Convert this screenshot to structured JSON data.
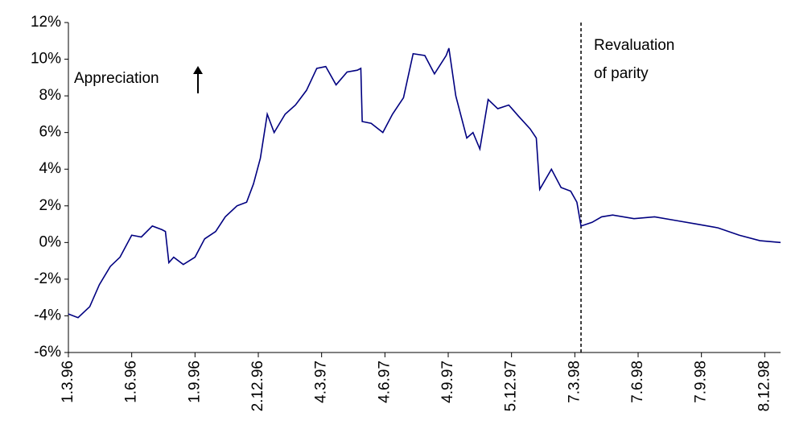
{
  "chart_data": {
    "type": "line",
    "x": [
      "1.3.96",
      "15.3.96",
      "1.4.96",
      "15.4.96",
      "1.5.96",
      "15.5.96",
      "1.6.96",
      "15.6.96",
      "1.7.96",
      "15.7.96",
      "20.7.96",
      "25.7.96",
      "1.8.96",
      "15.8.96",
      "1.9.96",
      "15.9.96",
      "1.10.96",
      "15.10.96",
      "1.11.96",
      "15.11.96",
      "25.11.96",
      "5.12.96",
      "15.12.96",
      "25.12.96",
      "10.1.97",
      "25.1.97",
      "10.2.97",
      "25.2.97",
      "10.3.97",
      "25.3.97",
      "10.4.97",
      "25.4.97",
      "30.4.97",
      "2.5.97",
      "15.5.97",
      "1.6.97",
      "15.6.97",
      "1.7.97",
      "15.7.97",
      "1.8.97",
      "15.8.97",
      "1.9.97",
      "5.9.97",
      "15.9.97",
      "1.10.97",
      "10.10.97",
      "20.10.97",
      "1.11.97",
      "15.11.97",
      "1.12.97",
      "15.12.97",
      "1.1.98",
      "10.1.98",
      "15.1.98",
      "1.2.98",
      "15.2.98",
      "1.3.98",
      "10.3.98",
      "16.3.98",
      "1.4.98",
      "15.4.98",
      "1.5.98",
      "1.6.98",
      "1.7.98",
      "1.8.98",
      "1.9.98",
      "1.10.98",
      "1.11.98",
      "1.12.98",
      "31.12.98"
    ],
    "series": [
      {
        "color": "#000080",
        "values": [
          -3.9,
          -4.1,
          -3.5,
          -2.3,
          -1.3,
          -0.8,
          0.4,
          0.3,
          0.9,
          0.7,
          0.6,
          -1.1,
          -0.8,
          -1.2,
          -0.8,
          0.2,
          0.6,
          1.4,
          2.0,
          2.2,
          3.2,
          4.6,
          7.0,
          6.0,
          7.0,
          7.5,
          8.3,
          9.5,
          9.6,
          8.6,
          9.3,
          9.4,
          9.5,
          6.6,
          6.5,
          6.0,
          7.0,
          7.9,
          10.3,
          10.2,
          9.2,
          10.2,
          10.6,
          8.0,
          5.7,
          6.0,
          5.1,
          7.8,
          7.3,
          7.5,
          6.9,
          6.2,
          5.7,
          2.9,
          4.0,
          3.0,
          2.8,
          2.2,
          0.9,
          1.1,
          1.4,
          1.5,
          1.3,
          1.4,
          1.2,
          1.0,
          0.8,
          0.4,
          0.1,
          0.0
        ]
      }
    ],
    "xlim": [
      "1.3.96",
      "31.12.98"
    ],
    "xticks": [
      "1.3.96",
      "1.6.96",
      "1.9.96",
      "2.12.96",
      "4.3.97",
      "4.6.97",
      "4.9.97",
      "5.12.97",
      "7.3.98",
      "7.6.98",
      "7.9.98",
      "8.12.98"
    ],
    "ylim": [
      -6,
      12
    ],
    "yticks": [
      {
        "value": -6,
        "label": "-6%"
      },
      {
        "value": -4,
        "label": "-4%"
      },
      {
        "value": -2,
        "label": "-2%"
      },
      {
        "value": 0,
        "label": "0%"
      },
      {
        "value": 2,
        "label": "2%"
      },
      {
        "value": 4,
        "label": "4%"
      },
      {
        "value": 6,
        "label": "6%"
      },
      {
        "value": 8,
        "label": "8%"
      },
      {
        "value": 10,
        "label": "10%"
      },
      {
        "value": 12,
        "label": "12%"
      }
    ],
    "annotations": [
      {
        "text": "Appreciation"
      },
      {
        "lines": [
          "Revaluation",
          "of parity"
        ],
        "x": "16.3.98"
      }
    ]
  }
}
